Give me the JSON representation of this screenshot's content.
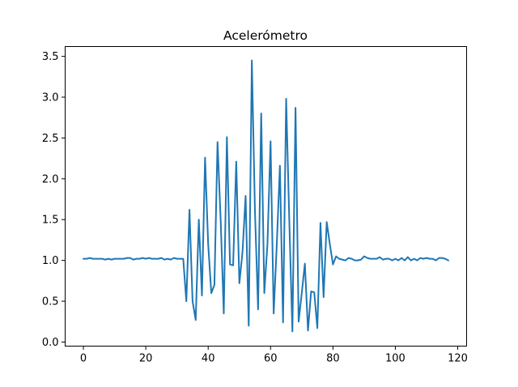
{
  "chart_data": {
    "type": "line",
    "title": "Acelerómetro",
    "xlabel": "",
    "ylabel": "",
    "xlim": [
      -5.85,
      122.85
    ],
    "ylim": [
      -0.05,
      3.62
    ],
    "xticks": [
      0,
      20,
      40,
      60,
      80,
      100,
      120
    ],
    "xtick_labels": [
      "0",
      "20",
      "40",
      "60",
      "80",
      "100",
      "120"
    ],
    "yticks": [
      0.0,
      0.5,
      1.0,
      1.5,
      2.0,
      2.5,
      3.0,
      3.5
    ],
    "ytick_labels": [
      "0.0",
      "0.5",
      "1.0",
      "1.5",
      "2.0",
      "2.5",
      "3.0",
      "3.5"
    ],
    "grid": false,
    "legend": "none",
    "colors": {
      "series": "#1f77b4",
      "axes": "#000000",
      "background": "#ffffff"
    },
    "series": [
      {
        "x": [
          0,
          1,
          2,
          3,
          4,
          5,
          6,
          7,
          8,
          9,
          10,
          11,
          12,
          13,
          14,
          15,
          16,
          17,
          18,
          19,
          20,
          21,
          22,
          23,
          24,
          25,
          26,
          27,
          28,
          29,
          30,
          31,
          32,
          33,
          34,
          35,
          36,
          37,
          38,
          39,
          40,
          41,
          42,
          43,
          44,
          45,
          46,
          47,
          48,
          49,
          50,
          51,
          52,
          53,
          54,
          55,
          56,
          57,
          58,
          59,
          60,
          61,
          62,
          63,
          64,
          65,
          66,
          67,
          68,
          69,
          70,
          71,
          72,
          73,
          74,
          75,
          76,
          77,
          78,
          79,
          80,
          81,
          82,
          83,
          84,
          85,
          86,
          87,
          88,
          89,
          90,
          91,
          92,
          93,
          94,
          95,
          96,
          97,
          98,
          99,
          100,
          101,
          102,
          103,
          104,
          105,
          106,
          107,
          108,
          109,
          110,
          111,
          112,
          113,
          114,
          115,
          116,
          117
        ],
        "y": [
          1.02,
          1.02,
          1.03,
          1.02,
          1.02,
          1.02,
          1.02,
          1.01,
          1.02,
          1.01,
          1.02,
          1.02,
          1.02,
          1.02,
          1.03,
          1.03,
          1.01,
          1.02,
          1.02,
          1.03,
          1.02,
          1.03,
          1.02,
          1.02,
          1.02,
          1.03,
          1.01,
          1.02,
          1.01,
          1.03,
          1.02,
          1.02,
          1.02,
          0.5,
          1.62,
          0.5,
          0.27,
          1.5,
          0.57,
          2.26,
          1.2,
          0.6,
          0.7,
          2.45,
          1.5,
          0.35,
          2.51,
          0.95,
          0.94,
          2.21,
          0.72,
          1.1,
          1.79,
          0.2,
          3.45,
          1.6,
          0.4,
          2.8,
          0.6,
          1.2,
          2.46,
          0.35,
          1.2,
          2.16,
          0.24,
          2.98,
          1.5,
          0.13,
          2.87,
          0.25,
          0.6,
          0.96,
          0.14,
          0.62,
          0.61,
          0.17,
          1.46,
          0.55,
          1.47,
          1.2,
          0.95,
          1.05,
          1.02,
          1.01,
          1.0,
          1.03,
          1.02,
          1.0,
          1.0,
          1.01,
          1.05,
          1.03,
          1.02,
          1.02,
          1.02,
          1.04,
          1.01,
          1.02,
          1.02,
          1.0,
          1.02,
          1.0,
          1.03,
          1.0,
          1.04,
          1.0,
          1.02,
          1.0,
          1.03,
          1.02,
          1.03,
          1.02,
          1.02,
          1.0,
          1.03,
          1.03,
          1.02,
          1.0
        ]
      }
    ]
  }
}
